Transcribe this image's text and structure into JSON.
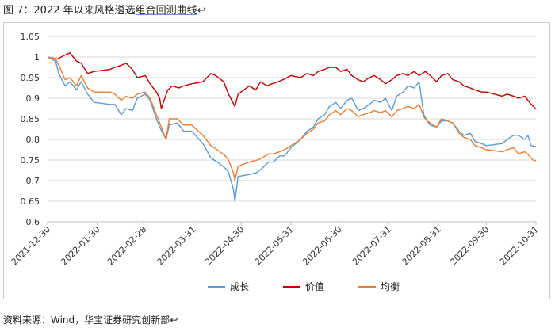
{
  "title": {
    "prefix": "图 7：2022 年以来风格遴选",
    "underlined": "组合回测曲线",
    "mark": "↩"
  },
  "source": {
    "prefix": "资料来源：Wind，",
    "underlined": "华宝证券研究创新部",
    "mark": "↩"
  },
  "chart_data": {
    "type": "line",
    "ylim": [
      0.6,
      1.05
    ],
    "yticks": [
      0.6,
      0.65,
      0.7,
      0.75,
      0.8,
      0.85,
      0.9,
      0.95,
      1,
      1.05
    ],
    "ytick_labels": [
      "0.6",
      "0.65",
      "0.7",
      "0.75",
      "0.8",
      "0.85",
      "0.9",
      "0.95",
      "1",
      "1.05"
    ],
    "xlim": [
      "2021-12-30",
      "2022-10-31"
    ],
    "xticks": [
      "2021-12-30",
      "2022-01-30",
      "2022-02-28",
      "2022-03-31",
      "2022-04-30",
      "2022-05-31",
      "2022-06-30",
      "2022-07-31",
      "2022-08-31",
      "2022-09-30",
      "2022-10-31"
    ],
    "grid": "horizontal",
    "legend_position": "bottom",
    "series": [
      {
        "name": "成长",
        "color": "#5b9bd5",
        "points": [
          [
            "2021-12-30",
            1.0
          ],
          [
            "2022-01-04",
            0.99
          ],
          [
            "2022-01-06",
            0.96
          ],
          [
            "2022-01-10",
            0.93
          ],
          [
            "2022-01-13",
            0.94
          ],
          [
            "2022-01-17",
            0.92
          ],
          [
            "2022-01-20",
            0.94
          ],
          [
            "2022-01-24",
            0.91
          ],
          [
            "2022-01-28",
            0.89
          ],
          [
            "2022-02-07",
            0.885
          ],
          [
            "2022-02-10",
            0.885
          ],
          [
            "2022-02-14",
            0.86
          ],
          [
            "2022-02-17",
            0.875
          ],
          [
            "2022-02-21",
            0.87
          ],
          [
            "2022-02-24",
            0.9
          ],
          [
            "2022-03-01",
            0.91
          ],
          [
            "2022-03-04",
            0.895
          ],
          [
            "2022-03-08",
            0.85
          ],
          [
            "2022-03-10",
            0.83
          ],
          [
            "2022-03-14",
            0.8
          ],
          [
            "2022-03-16",
            0.835
          ],
          [
            "2022-03-21",
            0.84
          ],
          [
            "2022-03-25",
            0.82
          ],
          [
            "2022-03-30",
            0.82
          ],
          [
            "2022-04-06",
            0.79
          ],
          [
            "2022-04-11",
            0.755
          ],
          [
            "2022-04-15",
            0.745
          ],
          [
            "2022-04-20",
            0.73
          ],
          [
            "2022-04-22",
            0.72
          ],
          [
            "2022-04-25",
            0.68
          ],
          [
            "2022-04-26",
            0.65
          ],
          [
            "2022-04-28",
            0.71
          ],
          [
            "2022-05-05",
            0.715
          ],
          [
            "2022-05-10",
            0.72
          ],
          [
            "2022-05-13",
            0.73
          ],
          [
            "2022-05-17",
            0.745
          ],
          [
            "2022-05-20",
            0.745
          ],
          [
            "2022-05-24",
            0.76
          ],
          [
            "2022-05-27",
            0.76
          ],
          [
            "2022-05-31",
            0.78
          ],
          [
            "2022-06-06",
            0.8
          ],
          [
            "2022-06-10",
            0.82
          ],
          [
            "2022-06-14",
            0.83
          ],
          [
            "2022-06-17",
            0.85
          ],
          [
            "2022-06-21",
            0.86
          ],
          [
            "2022-06-24",
            0.88
          ],
          [
            "2022-06-28",
            0.89
          ],
          [
            "2022-07-01",
            0.875
          ],
          [
            "2022-07-05",
            0.895
          ],
          [
            "2022-07-08",
            0.9
          ],
          [
            "2022-07-12",
            0.87
          ],
          [
            "2022-07-15",
            0.875
          ],
          [
            "2022-07-19",
            0.885
          ],
          [
            "2022-07-22",
            0.895
          ],
          [
            "2022-07-26",
            0.89
          ],
          [
            "2022-07-29",
            0.9
          ],
          [
            "2022-08-02",
            0.87
          ],
          [
            "2022-08-05",
            0.905
          ],
          [
            "2022-08-09",
            0.915
          ],
          [
            "2022-08-12",
            0.93
          ],
          [
            "2022-08-16",
            0.925
          ],
          [
            "2022-08-19",
            0.94
          ],
          [
            "2022-08-22",
            0.86
          ],
          [
            "2022-08-24",
            0.845
          ],
          [
            "2022-08-26",
            0.835
          ],
          [
            "2022-08-30",
            0.83
          ],
          [
            "2022-09-02",
            0.845
          ],
          [
            "2022-09-06",
            0.845
          ],
          [
            "2022-09-09",
            0.84
          ],
          [
            "2022-09-13",
            0.82
          ],
          [
            "2022-09-16",
            0.81
          ],
          [
            "2022-09-20",
            0.815
          ],
          [
            "2022-09-23",
            0.795
          ],
          [
            "2022-09-27",
            0.79
          ],
          [
            "2022-09-30",
            0.785
          ],
          [
            "2022-10-10",
            0.79
          ],
          [
            "2022-10-13",
            0.8
          ],
          [
            "2022-10-17",
            0.81
          ],
          [
            "2022-10-20",
            0.81
          ],
          [
            "2022-10-24",
            0.8
          ],
          [
            "2022-10-26",
            0.81
          ],
          [
            "2022-10-28",
            0.785
          ],
          [
            "2022-10-31",
            0.783
          ]
        ]
      },
      {
        "name": "价值",
        "color": "#c00000",
        "points": [
          [
            "2021-12-30",
            1.0
          ],
          [
            "2022-01-05",
            0.995
          ],
          [
            "2022-01-10",
            1.005
          ],
          [
            "2022-01-13",
            1.01
          ],
          [
            "2022-01-17",
            0.99
          ],
          [
            "2022-01-20",
            0.985
          ],
          [
            "2022-01-24",
            0.96
          ],
          [
            "2022-01-28",
            0.965
          ],
          [
            "2022-02-07",
            0.97
          ],
          [
            "2022-02-10",
            0.975
          ],
          [
            "2022-02-14",
            0.98
          ],
          [
            "2022-02-17",
            0.985
          ],
          [
            "2022-02-21",
            0.97
          ],
          [
            "2022-02-24",
            0.95
          ],
          [
            "2022-03-01",
            0.955
          ],
          [
            "2022-03-04",
            0.935
          ],
          [
            "2022-03-08",
            0.915
          ],
          [
            "2022-03-10",
            0.9
          ],
          [
            "2022-03-11",
            0.875
          ],
          [
            "2022-03-15",
            0.92
          ],
          [
            "2022-03-18",
            0.93
          ],
          [
            "2022-03-22",
            0.925
          ],
          [
            "2022-03-25",
            0.93
          ],
          [
            "2022-03-30",
            0.935
          ],
          [
            "2022-04-06",
            0.94
          ],
          [
            "2022-04-11",
            0.96
          ],
          [
            "2022-04-14",
            0.955
          ],
          [
            "2022-04-19",
            0.94
          ],
          [
            "2022-04-22",
            0.91
          ],
          [
            "2022-04-26",
            0.88
          ],
          [
            "2022-04-28",
            0.91
          ],
          [
            "2022-05-05",
            0.93
          ],
          [
            "2022-05-09",
            0.92
          ],
          [
            "2022-05-12",
            0.94
          ],
          [
            "2022-05-16",
            0.93
          ],
          [
            "2022-05-19",
            0.935
          ],
          [
            "2022-05-23",
            0.94
          ],
          [
            "2022-05-26",
            0.945
          ],
          [
            "2022-05-31",
            0.955
          ],
          [
            "2022-06-06",
            0.95
          ],
          [
            "2022-06-10",
            0.96
          ],
          [
            "2022-06-14",
            0.955
          ],
          [
            "2022-06-17",
            0.965
          ],
          [
            "2022-06-21",
            0.97
          ],
          [
            "2022-06-24",
            0.975
          ],
          [
            "2022-06-28",
            0.975
          ],
          [
            "2022-07-01",
            0.965
          ],
          [
            "2022-07-05",
            0.97
          ],
          [
            "2022-07-08",
            0.955
          ],
          [
            "2022-07-12",
            0.945
          ],
          [
            "2022-07-15",
            0.94
          ],
          [
            "2022-07-19",
            0.95
          ],
          [
            "2022-07-22",
            0.955
          ],
          [
            "2022-07-26",
            0.945
          ],
          [
            "2022-07-29",
            0.935
          ],
          [
            "2022-08-02",
            0.945
          ],
          [
            "2022-08-05",
            0.955
          ],
          [
            "2022-08-09",
            0.96
          ],
          [
            "2022-08-12",
            0.955
          ],
          [
            "2022-08-16",
            0.965
          ],
          [
            "2022-08-19",
            0.955
          ],
          [
            "2022-08-23",
            0.965
          ],
          [
            "2022-08-26",
            0.955
          ],
          [
            "2022-08-30",
            0.94
          ],
          [
            "2022-09-02",
            0.955
          ],
          [
            "2022-09-06",
            0.96
          ],
          [
            "2022-09-09",
            0.945
          ],
          [
            "2022-09-13",
            0.94
          ],
          [
            "2022-09-16",
            0.93
          ],
          [
            "2022-09-20",
            0.925
          ],
          [
            "2022-09-23",
            0.92
          ],
          [
            "2022-09-27",
            0.915
          ],
          [
            "2022-09-30",
            0.915
          ],
          [
            "2022-10-10",
            0.905
          ],
          [
            "2022-10-13",
            0.91
          ],
          [
            "2022-10-17",
            0.905
          ],
          [
            "2022-10-20",
            0.9
          ],
          [
            "2022-10-24",
            0.905
          ],
          [
            "2022-10-27",
            0.89
          ],
          [
            "2022-10-31",
            0.873
          ]
        ]
      },
      {
        "name": "均衡",
        "color": "#ed7d31",
        "points": [
          [
            "2021-12-30",
            1.0
          ],
          [
            "2022-01-04",
            0.995
          ],
          [
            "2022-01-06",
            0.98
          ],
          [
            "2022-01-10",
            0.945
          ],
          [
            "2022-01-13",
            0.95
          ],
          [
            "2022-01-17",
            0.93
          ],
          [
            "2022-01-20",
            0.955
          ],
          [
            "2022-01-24",
            0.925
          ],
          [
            "2022-01-28",
            0.915
          ],
          [
            "2022-02-07",
            0.915
          ],
          [
            "2022-02-10",
            0.91
          ],
          [
            "2022-02-14",
            0.895
          ],
          [
            "2022-02-17",
            0.905
          ],
          [
            "2022-02-21",
            0.9
          ],
          [
            "2022-02-24",
            0.91
          ],
          [
            "2022-03-01",
            0.915
          ],
          [
            "2022-03-04",
            0.9
          ],
          [
            "2022-03-08",
            0.86
          ],
          [
            "2022-03-10",
            0.84
          ],
          [
            "2022-03-14",
            0.8
          ],
          [
            "2022-03-16",
            0.85
          ],
          [
            "2022-03-21",
            0.85
          ],
          [
            "2022-03-25",
            0.835
          ],
          [
            "2022-03-30",
            0.835
          ],
          [
            "2022-04-06",
            0.81
          ],
          [
            "2022-04-11",
            0.785
          ],
          [
            "2022-04-15",
            0.775
          ],
          [
            "2022-04-20",
            0.76
          ],
          [
            "2022-04-22",
            0.75
          ],
          [
            "2022-04-25",
            0.72
          ],
          [
            "2022-04-26",
            0.7
          ],
          [
            "2022-04-28",
            0.735
          ],
          [
            "2022-05-05",
            0.745
          ],
          [
            "2022-05-10",
            0.75
          ],
          [
            "2022-05-13",
            0.755
          ],
          [
            "2022-05-17",
            0.765
          ],
          [
            "2022-05-20",
            0.765
          ],
          [
            "2022-05-24",
            0.77
          ],
          [
            "2022-05-27",
            0.775
          ],
          [
            "2022-05-31",
            0.785
          ],
          [
            "2022-06-06",
            0.8
          ],
          [
            "2022-06-10",
            0.815
          ],
          [
            "2022-06-14",
            0.825
          ],
          [
            "2022-06-17",
            0.84
          ],
          [
            "2022-06-21",
            0.845
          ],
          [
            "2022-06-24",
            0.86
          ],
          [
            "2022-06-28",
            0.87
          ],
          [
            "2022-07-01",
            0.86
          ],
          [
            "2022-07-05",
            0.875
          ],
          [
            "2022-07-08",
            0.87
          ],
          [
            "2022-07-12",
            0.855
          ],
          [
            "2022-07-15",
            0.86
          ],
          [
            "2022-07-19",
            0.865
          ],
          [
            "2022-07-22",
            0.87
          ],
          [
            "2022-07-26",
            0.865
          ],
          [
            "2022-07-29",
            0.87
          ],
          [
            "2022-08-02",
            0.855
          ],
          [
            "2022-08-05",
            0.87
          ],
          [
            "2022-08-09",
            0.875
          ],
          [
            "2022-08-12",
            0.88
          ],
          [
            "2022-08-16",
            0.875
          ],
          [
            "2022-08-19",
            0.885
          ],
          [
            "2022-08-22",
            0.855
          ],
          [
            "2022-08-24",
            0.845
          ],
          [
            "2022-08-26",
            0.84
          ],
          [
            "2022-08-30",
            0.83
          ],
          [
            "2022-09-02",
            0.85
          ],
          [
            "2022-09-06",
            0.845
          ],
          [
            "2022-09-09",
            0.84
          ],
          [
            "2022-09-13",
            0.815
          ],
          [
            "2022-09-16",
            0.805
          ],
          [
            "2022-09-20",
            0.8
          ],
          [
            "2022-09-23",
            0.785
          ],
          [
            "2022-09-27",
            0.78
          ],
          [
            "2022-09-30",
            0.775
          ],
          [
            "2022-10-10",
            0.77
          ],
          [
            "2022-10-13",
            0.775
          ],
          [
            "2022-10-17",
            0.78
          ],
          [
            "2022-10-20",
            0.765
          ],
          [
            "2022-10-24",
            0.77
          ],
          [
            "2022-10-27",
            0.76
          ],
          [
            "2022-10-29",
            0.75
          ],
          [
            "2022-10-31",
            0.748
          ]
        ]
      }
    ]
  }
}
